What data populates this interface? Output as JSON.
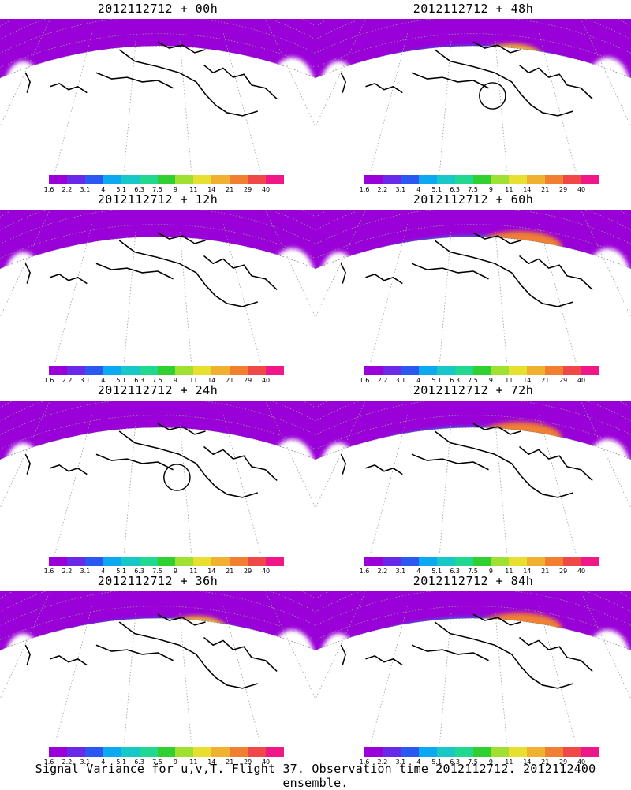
{
  "panels": [
    {
      "title": "2012112712 + 00h",
      "col": 0,
      "row": 0,
      "stage": 0,
      "circle": false
    },
    {
      "title": "2012112712 + 48h",
      "col": 1,
      "row": 0,
      "stage": 3,
      "circle": true
    },
    {
      "title": "2012112712 + 12h",
      "col": 0,
      "row": 1,
      "stage": 1,
      "circle": false
    },
    {
      "title": "2012112712 + 60h",
      "col": 1,
      "row": 1,
      "stage": 4,
      "circle": false
    },
    {
      "title": "2012112712 + 24h",
      "col": 0,
      "row": 2,
      "stage": 2,
      "circle": true
    },
    {
      "title": "2012112712 + 72h",
      "col": 1,
      "row": 2,
      "stage": 4,
      "circle": false
    },
    {
      "title": "2012112712 + 36h",
      "col": 0,
      "row": 3,
      "stage": 3,
      "circle": false
    },
    {
      "title": "2012112712 + 84h",
      "col": 1,
      "row": 3,
      "stage": 4,
      "circle": false
    }
  ],
  "colorbar": {
    "ticks": [
      "1.6",
      "2.2",
      "3.1",
      "4",
      "5.1",
      "6.3",
      "7.5",
      "9",
      "11",
      "14",
      "21",
      "29",
      "40"
    ],
    "colors": [
      "#9a00d8",
      "#6a28e8",
      "#2b58f0",
      "#0ca8f0",
      "#18c8c8",
      "#20d890",
      "#30d030",
      "#a0e030",
      "#e8e030",
      "#f0b030",
      "#f08030",
      "#f04848",
      "#f01888"
    ]
  },
  "footer": "Signal Variance for u,v,T. Flight 37. Observation time 2012112712. 2012112400 ensemble."
}
